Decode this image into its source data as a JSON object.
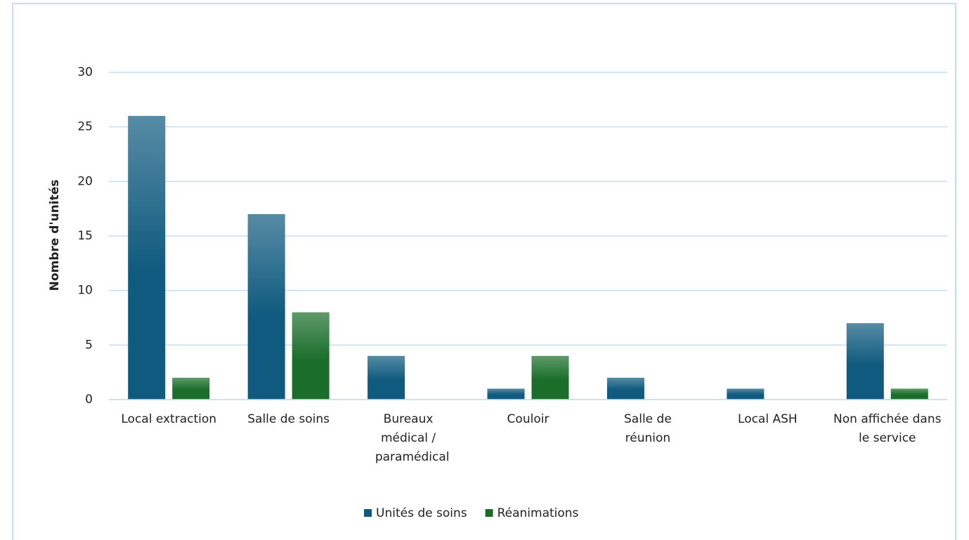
{
  "chart_data": {
    "type": "bar",
    "y_label": "Nombre d'unités",
    "categories": [
      "Local extraction",
      "Salle de soins",
      "Bureaux médical / paramédical",
      "Couloir",
      "Salle de réunion",
      "Local ASH",
      "Non affichée dans le service"
    ],
    "series": [
      {
        "name": "Unités de soins",
        "color": "#0f5a7e",
        "values": [
          26,
          17,
          4,
          1,
          2,
          1,
          7
        ]
      },
      {
        "name": "Réanimations",
        "color": "#1a6e2a",
        "values": [
          2,
          8,
          0,
          4,
          0,
          0,
          1
        ]
      }
    ],
    "ylim": [
      0,
      30
    ],
    "yticks": [
      0,
      5,
      10,
      15,
      20,
      25,
      30
    ],
    "grid": true,
    "legend": "bottom"
  }
}
